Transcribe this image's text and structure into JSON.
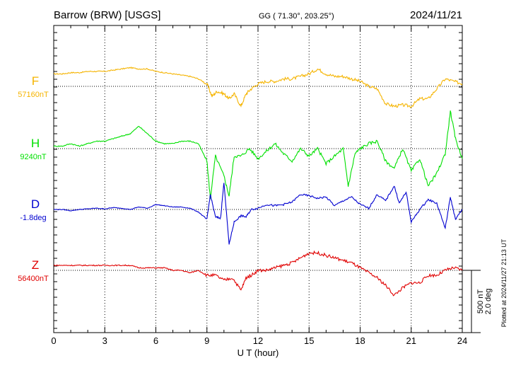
{
  "header": {
    "station": "Barrow (BRW)  [USGS]",
    "coords": "GG ( 71.30°, 203.25°)",
    "date": "2024/11/21"
  },
  "footer_note": "Plotted at 2024/11/27 21:13 UT",
  "colors": {
    "F": "#f5b400",
    "H": "#00e000",
    "D": "#0000d0",
    "Z": "#e00000"
  },
  "chart_data": {
    "type": "line",
    "title": "Barrow (BRW)  [USGS]",
    "xlabel": "U T (hour)",
    "xlim": [
      0,
      24
    ],
    "x_ticks": [
      "0",
      "3",
      "6",
      "9",
      "12",
      "15",
      "18",
      "21",
      "24"
    ],
    "grid": true,
    "scale_bar": [
      "500 nT",
      "2.0 deg"
    ],
    "series": [
      {
        "name": "F",
        "baseline_label": "57160nT",
        "unit": "nT",
        "baseline": 57160,
        "x": [
          0,
          0.5,
          1,
          1.5,
          2,
          2.5,
          3,
          3.5,
          4,
          4.5,
          5,
          5.5,
          6,
          6.5,
          7,
          7.5,
          8,
          8.5,
          9,
          9.3,
          9.6,
          10,
          10.3,
          10.6,
          11,
          11.3,
          11.6,
          12,
          12.5,
          13,
          13.5,
          14,
          14.5,
          15,
          15.5,
          16,
          16.5,
          17,
          17.5,
          18,
          18.5,
          19,
          19.5,
          20,
          20.5,
          21,
          21.5,
          22,
          22.5,
          23,
          23.5,
          24
        ],
        "values": [
          100,
          100,
          110,
          110,
          120,
          120,
          120,
          130,
          140,
          150,
          140,
          140,
          120,
          110,
          100,
          90,
          80,
          60,
          20,
          -80,
          -40,
          -60,
          -100,
          -60,
          -160,
          -60,
          -20,
          20,
          40,
          40,
          60,
          60,
          80,
          100,
          140,
          100,
          80,
          80,
          60,
          40,
          0,
          -20,
          -140,
          -160,
          -150,
          -160,
          -100,
          -100,
          -20,
          60,
          40,
          20
        ]
      },
      {
        "name": "H",
        "baseline_label": "9240nT",
        "unit": "nT",
        "baseline": 9240,
        "x": [
          0,
          0.5,
          1,
          1.5,
          2,
          2.5,
          3,
          3.5,
          4,
          4.5,
          5,
          5.5,
          6,
          6.5,
          7,
          7.5,
          8,
          8.5,
          9,
          9.2,
          9.5,
          10,
          10.3,
          10.6,
          11,
          11.5,
          12,
          12.5,
          13,
          13.5,
          14,
          14.5,
          15,
          15.5,
          16,
          16.5,
          17,
          17.3,
          17.7,
          18,
          18.5,
          19,
          19.5,
          20,
          20.5,
          21,
          21.5,
          22,
          22.5,
          23,
          23.3,
          23.6,
          24
        ],
        "values": [
          20,
          20,
          40,
          20,
          40,
          60,
          60,
          80,
          100,
          120,
          180,
          120,
          60,
          40,
          40,
          60,
          60,
          40,
          -100,
          -400,
          -60,
          -220,
          -380,
          -60,
          -60,
          0,
          -80,
          -20,
          40,
          -40,
          -100,
          0,
          -60,
          0,
          -120,
          -60,
          0,
          -300,
          -40,
          0,
          40,
          60,
          -100,
          -160,
          0,
          -180,
          -80,
          -300,
          -200,
          -40,
          300,
          80,
          -80
        ]
      },
      {
        "name": "D",
        "baseline_label": "-1.8deg",
        "unit": "deg",
        "baseline": -1.8,
        "x": [
          0,
          0.5,
          1,
          1.5,
          2,
          2.5,
          3,
          3.5,
          4,
          4.5,
          5,
          5.5,
          6,
          6.5,
          7,
          7.5,
          8,
          8.5,
          9,
          9.2,
          9.5,
          9.8,
          10,
          10.3,
          10.6,
          11,
          11.3,
          11.6,
          12,
          12.5,
          13,
          13.5,
          14,
          14.5,
          15,
          15.5,
          16,
          16.5,
          17,
          17.5,
          18,
          18.5,
          19,
          19.5,
          20,
          20.3,
          20.7,
          21,
          21.5,
          22,
          22.5,
          23,
          23.3,
          23.6,
          24
        ],
        "values": [
          0,
          0,
          -0.04,
          0,
          0.02,
          0.04,
          0.02,
          0.06,
          0.04,
          0,
          0.08,
          0.04,
          0.16,
          0.12,
          0.08,
          0.08,
          0.04,
          -0.08,
          -0.32,
          0.48,
          -0.24,
          -0.28,
          0.88,
          -1.12,
          -0.4,
          -0.2,
          -0.24,
          0,
          0.04,
          0.16,
          0.12,
          0.16,
          0.24,
          0.48,
          0.44,
          0.36,
          0.4,
          0.12,
          0.28,
          0.4,
          0.16,
          0.04,
          0.48,
          0.28,
          0.76,
          0.2,
          0.56,
          -0.4,
          0,
          0.32,
          0.2,
          -0.6,
          0.4,
          -0.32,
          0
        ]
      },
      {
        "name": "Z",
        "baseline_label": "56400nT",
        "unit": "nT",
        "baseline": 56400,
        "x": [
          0,
          0.5,
          1,
          1.5,
          2,
          2.5,
          3,
          3.5,
          4,
          4.5,
          5,
          5.5,
          6,
          6.5,
          7,
          7.5,
          8,
          8.5,
          9,
          9.5,
          10,
          10.5,
          11,
          11.3,
          11.6,
          12,
          12.5,
          13,
          13.5,
          14,
          14.5,
          15,
          15.5,
          16,
          16.5,
          17,
          17.5,
          18,
          18.5,
          19,
          19.5,
          20,
          20.5,
          21,
          21.5,
          22,
          22.5,
          23,
          23.5,
          24
        ],
        "values": [
          40,
          40,
          40,
          40,
          40,
          40,
          40,
          40,
          40,
          40,
          20,
          20,
          20,
          20,
          0,
          0,
          -20,
          0,
          -40,
          -40,
          -80,
          -60,
          -160,
          -60,
          -40,
          0,
          0,
          20,
          40,
          60,
          100,
          140,
          140,
          120,
          100,
          80,
          60,
          20,
          -20,
          -60,
          -120,
          -200,
          -140,
          -100,
          -100,
          -40,
          -40,
          0,
          20,
          0
        ]
      }
    ]
  }
}
